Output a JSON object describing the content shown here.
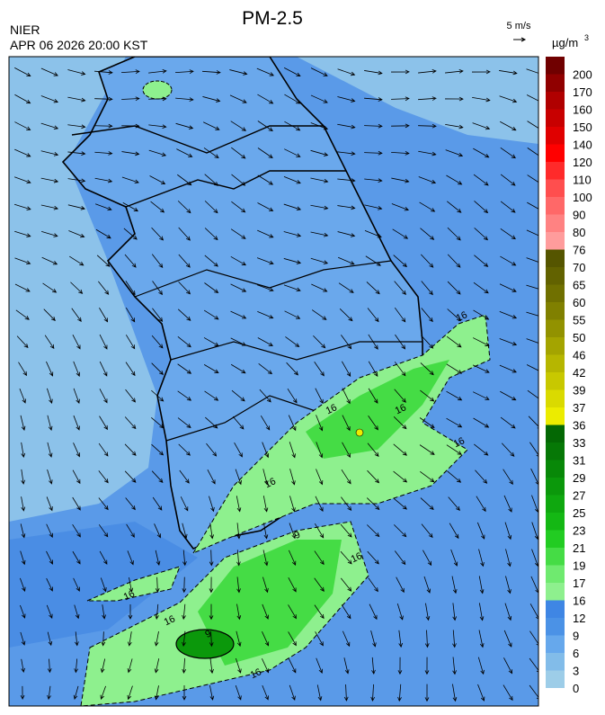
{
  "header": {
    "title": "PM-2.5",
    "agency": "NIER",
    "datetime": "APR 06 2026 20:00 KST"
  },
  "wind_key": {
    "label": "5 m/s"
  },
  "colorbar": {
    "unit": "µg/m",
    "unit_exponent": "3",
    "levels": [
      0,
      3,
      6,
      9,
      12,
      16,
      17,
      19,
      21,
      23,
      25,
      27,
      29,
      31,
      33,
      36,
      37,
      39,
      42,
      46,
      50,
      55,
      60,
      65,
      70,
      76,
      80,
      90,
      100,
      110,
      120,
      140,
      150,
      160,
      170,
      200
    ],
    "colors": [
      "#9dcde8",
      "#82bce9",
      "#66a8ec",
      "#4b92e6",
      "#3f86e4",
      "#8ef08e",
      "#6fea6f",
      "#45dc45",
      "#22cc22",
      "#14b814",
      "#0fa80f",
      "#0b980b",
      "#088808",
      "#067806",
      "#046804",
      "#ecec00",
      "#dada00",
      "#c8c800",
      "#b6b600",
      "#a4a400",
      "#929200",
      "#808000",
      "#707000",
      "#626200",
      "#555500",
      "#ff9c9c",
      "#ff8282",
      "#ff6868",
      "#ff4e4e",
      "#ff2a2a",
      "#ff0000",
      "#e00000",
      "#c80000",
      "#b00000",
      "#900000",
      "#700000"
    ]
  },
  "contour_labels": [
    "16",
    "16",
    "16",
    "16",
    "16",
    "9",
    "16",
    "16",
    "16",
    "16",
    "9"
  ]
}
